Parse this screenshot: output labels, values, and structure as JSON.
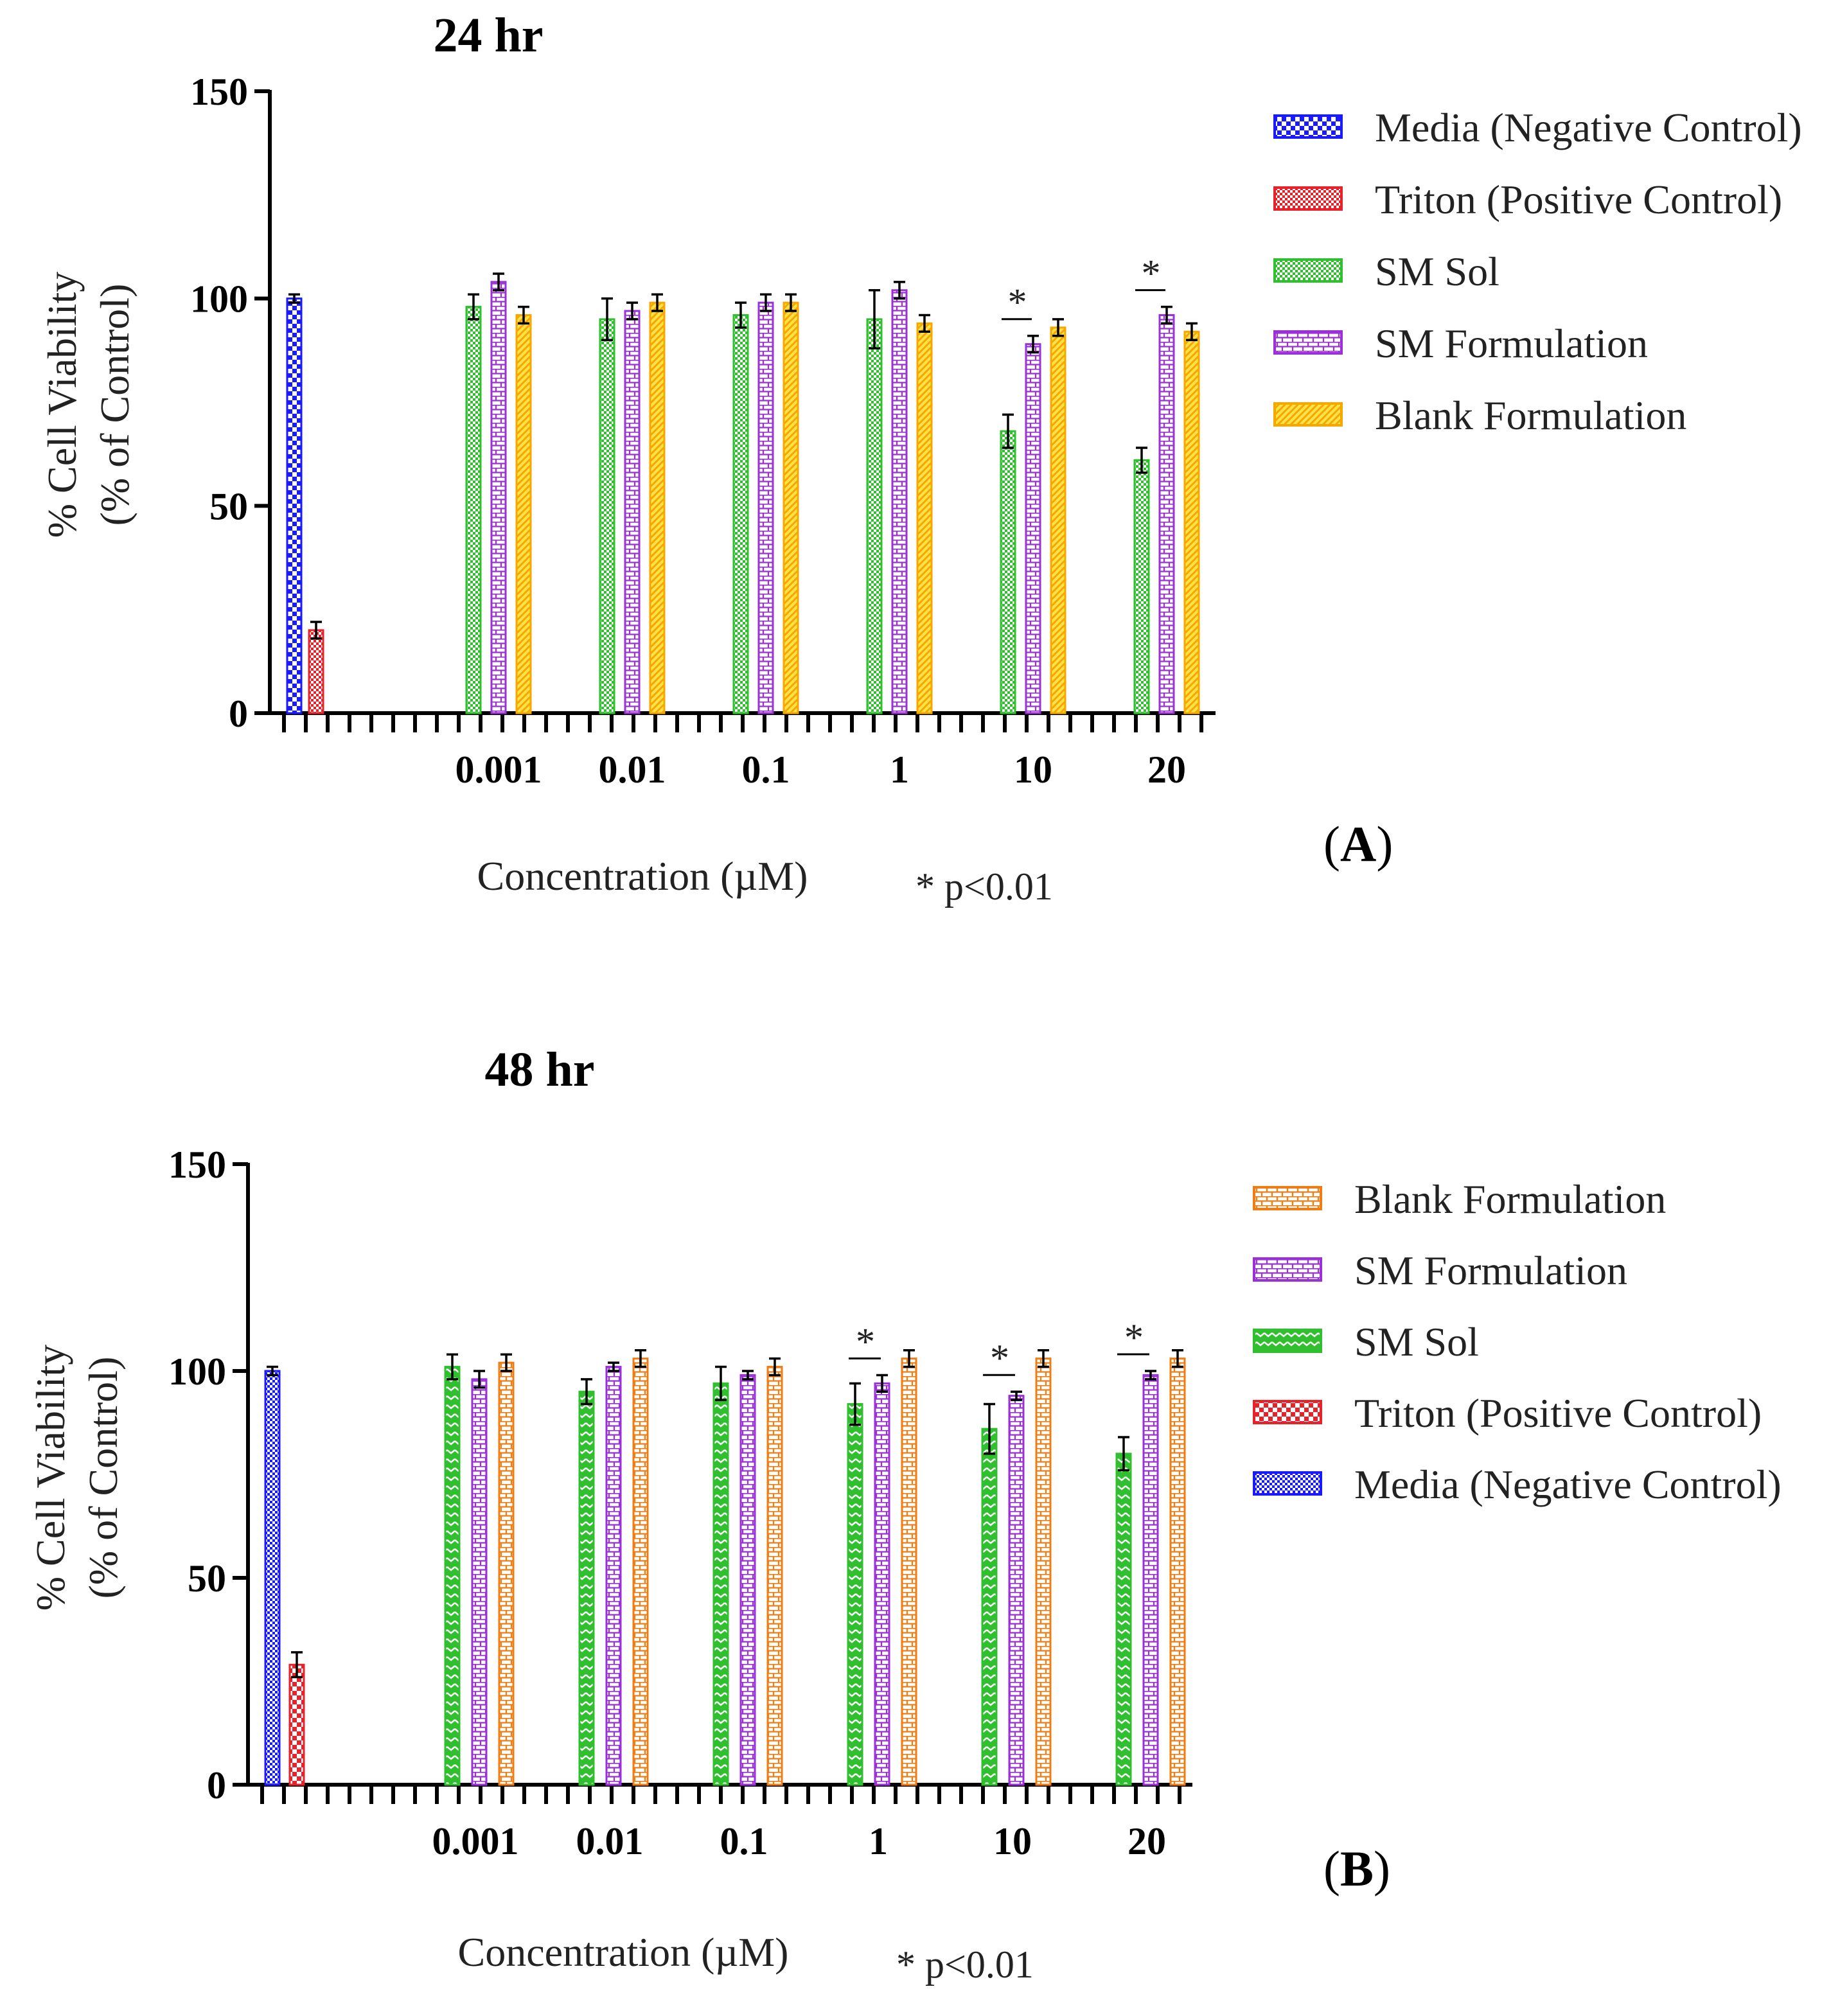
{
  "significance_note": "* p<0.01",
  "chart_data": [
    {
      "type": "bar",
      "panel": "A",
      "title": "24 hr",
      "ylabel_line1": "% Cell Viability",
      "ylabel_line2": "(% of Control)",
      "xlabel": "Concentration (µM)",
      "ylim": [
        0,
        150
      ],
      "yticks": [
        0,
        50,
        100,
        150
      ],
      "categories": [
        "0.001",
        "0.01",
        "0.1",
        "1",
        "10",
        "20"
      ],
      "controls": [
        {
          "name": "Media (Negative Control)",
          "value": 100,
          "error": 1,
          "color": "#1a1aff",
          "pattern": "checker"
        },
        {
          "name": "Triton (Positive Control)",
          "value": 20,
          "error": 2,
          "color": "#e8222a",
          "pattern": "check-small"
        }
      ],
      "legend": [
        "Media (Negative Control)",
        "Triton (Positive Control)",
        "SM Sol",
        "SM Formulation",
        "Blank Formulation"
      ],
      "legend_colors": [
        "#1a1aff",
        "#e8222a",
        "#2fbf2f",
        "#9b30d9",
        "#f5a800"
      ],
      "legend_patterns": [
        "checker",
        "check-small",
        "check-small",
        "brick",
        "diag"
      ],
      "series": [
        {
          "name": "SM Sol",
          "color": "#2fbf2f",
          "pattern": "check-small",
          "values": [
            98,
            95,
            96,
            95,
            68,
            61
          ],
          "errors": [
            3,
            5,
            3,
            7,
            4,
            3
          ]
        },
        {
          "name": "SM Formulation",
          "color": "#9b30d9",
          "pattern": "brick",
          "values": [
            104,
            97,
            99,
            102,
            89,
            96
          ],
          "errors": [
            2,
            2,
            2,
            2,
            2,
            2
          ]
        },
        {
          "name": "Blank Formulation",
          "color": "#f5a800",
          "pattern": "diag",
          "values": [
            96,
            99,
            99,
            94,
            93,
            92
          ],
          "errors": [
            2,
            2,
            2,
            2,
            2,
            2
          ]
        }
      ],
      "significant": [
        "10",
        "20"
      ]
    },
    {
      "type": "bar",
      "panel": "B",
      "title": "48 hr",
      "ylabel_line1": "% Cell Viability",
      "ylabel_line2": "(% of Control)",
      "xlabel": "Concentration (µM)",
      "ylim": [
        0,
        150
      ],
      "yticks": [
        0,
        50,
        100,
        150
      ],
      "categories": [
        "0.001",
        "0.01",
        "0.1",
        "1",
        "10",
        "20"
      ],
      "controls": [
        {
          "name": "Media (Negative Control)",
          "value": 100,
          "error": 1,
          "color": "#1a1aff",
          "pattern": "check-small"
        },
        {
          "name": "Triton (Positive Control)",
          "value": 29,
          "error": 3,
          "color": "#e8222a",
          "pattern": "checker"
        }
      ],
      "legend": [
        "Blank Formulation",
        "SM Formulation",
        "SM Sol",
        "Triton (Positive Control)",
        "Media (Negative Control)"
      ],
      "legend_colors": [
        "#f07d14",
        "#9b30d9",
        "#2fbf2f",
        "#e8222a",
        "#1a1aff"
      ],
      "legend_patterns": [
        "brick",
        "brick",
        "zigzag",
        "checker",
        "check-small"
      ],
      "series": [
        {
          "name": "SM Sol",
          "color": "#2fbf2f",
          "pattern": "zigzag",
          "values": [
            101,
            95,
            97,
            92,
            86,
            80
          ],
          "errors": [
            3,
            3,
            4,
            5,
            6,
            4
          ]
        },
        {
          "name": "SM Formulation",
          "color": "#9b30d9",
          "pattern": "brick",
          "values": [
            98,
            101,
            99,
            97,
            94,
            99
          ],
          "errors": [
            2,
            1,
            1,
            2,
            1,
            1
          ]
        },
        {
          "name": "Blank Formulation",
          "color": "#f07d14",
          "pattern": "brick",
          "values": [
            102,
            103,
            101,
            103,
            103,
            103
          ],
          "errors": [
            2,
            2,
            2,
            2,
            2,
            2
          ]
        }
      ],
      "significant": [
        "1",
        "10",
        "20"
      ]
    }
  ]
}
